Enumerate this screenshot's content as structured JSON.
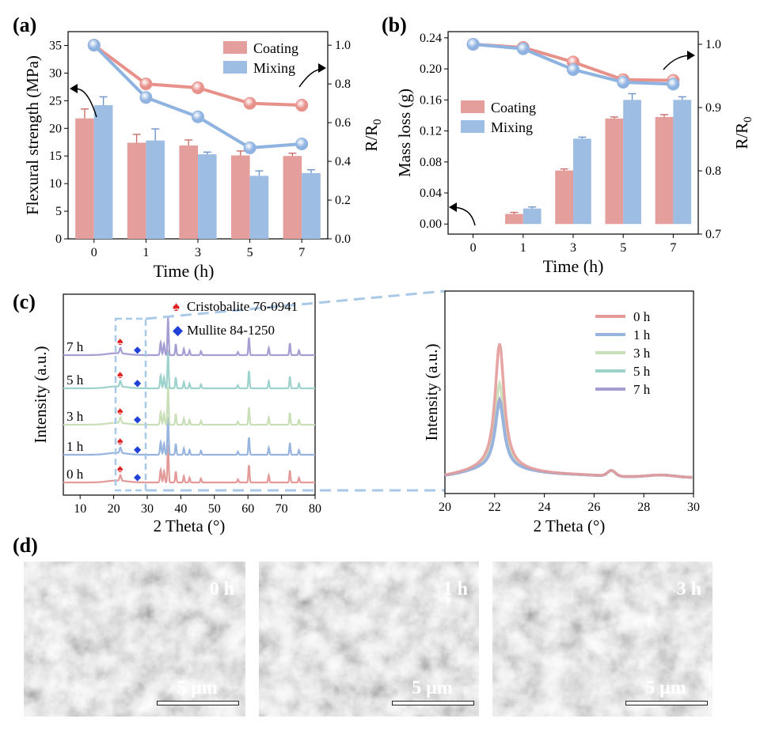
{
  "colors": {
    "coating": "#e49e9b",
    "coating_line": "#e8908a",
    "mixing": "#9dbde3",
    "mixing_line": "#8fb3e0",
    "cristobalite": "#e02020",
    "mullite": "#2040d8",
    "zoom_dash": "#a9c9e8",
    "xrd": [
      "#e39a99",
      "#97b5df",
      "#c9dfb8",
      "#9ed3cd",
      "#a59ed3"
    ]
  },
  "panel_labels": {
    "a": "(a)",
    "b": "(b)",
    "c": "(c)",
    "d": "(d)"
  },
  "chart_data": [
    {
      "id": "a",
      "type": "bar",
      "categories": [
        "0",
        "1",
        "3",
        "5",
        "7"
      ],
      "series": [
        {
          "name": "Coating",
          "values": [
            21.8,
            17.4,
            16.9,
            15.1,
            15.0
          ],
          "errors": [
            1.7,
            1.5,
            1.0,
            0.8,
            0.5
          ]
        },
        {
          "name": "Mixing",
          "values": [
            24.2,
            17.8,
            15.3,
            11.4,
            11.9
          ],
          "errors": [
            1.5,
            2.1,
            0.4,
            0.9,
            0.6
          ]
        }
      ],
      "line_series": [
        {
          "name": "Coating",
          "values": [
            1.0,
            0.8,
            0.78,
            0.7,
            0.69
          ]
        },
        {
          "name": "Mixing",
          "values": [
            1.0,
            0.73,
            0.63,
            0.47,
            0.49
          ]
        }
      ],
      "xlabel": "Time (h)",
      "ylabel": "Flexural strength (MPa)",
      "y2label": "R/R0",
      "ylim": [
        0,
        37.5
      ],
      "y2lim": [
        0,
        1.07
      ],
      "yticks": [
        "0",
        "5",
        "10",
        "15",
        "20",
        "25",
        "30",
        "35"
      ],
      "y2ticks": [
        "0.0",
        "0.2",
        "0.4",
        "0.6",
        "0.8",
        "1.0"
      ],
      "legend": [
        "Coating",
        "Mixing"
      ],
      "legend_position": "top-right"
    },
    {
      "id": "b",
      "type": "bar",
      "categories": [
        "0",
        "1",
        "3",
        "5",
        "7"
      ],
      "series": [
        {
          "name": "Coating",
          "values": [
            0.0,
            0.013,
            0.069,
            0.136,
            0.138
          ],
          "errors": [
            0.0,
            0.002,
            0.002,
            0.002,
            0.003
          ]
        },
        {
          "name": "Mixing",
          "values": [
            0.0,
            0.02,
            0.11,
            0.16,
            0.16
          ],
          "errors": [
            0.0,
            0.002,
            0.002,
            0.008,
            0.004
          ]
        }
      ],
      "line_series": [
        {
          "name": "Coating",
          "values": [
            1.0,
            0.995,
            0.972,
            0.944,
            0.943
          ]
        },
        {
          "name": "Mixing",
          "values": [
            1.0,
            0.993,
            0.96,
            0.94,
            0.937
          ]
        }
      ],
      "xlabel": "Time (h)",
      "ylabel": "Mass loss (g)",
      "y2label": "R/R0",
      "ylim": [
        -0.013,
        0.248
      ],
      "y2lim": [
        0.7,
        1.02
      ],
      "yticks": [
        "0.00",
        "0.04",
        "0.08",
        "0.12",
        "0.16",
        "0.20",
        "0.24"
      ],
      "y2ticks": [
        "0.7",
        "0.8",
        "0.9",
        "1.0"
      ],
      "legend": [
        "Coating",
        "Mixing"
      ],
      "legend_position": "center-left"
    },
    {
      "id": "c-left",
      "type": "line",
      "xlabel": "2 Theta (°)",
      "ylabel": "Intensity (a.u.)",
      "xlim": [
        5,
        80
      ],
      "xticks": [
        "10",
        "20",
        "30",
        "40",
        "50",
        "60",
        "70",
        "80"
      ],
      "traces": [
        "0 h",
        "1 h",
        "3 h",
        "5 h",
        "7 h"
      ],
      "peaks_2theta": [
        22.0,
        26.8,
        34.0,
        36.2,
        38.5,
        42.2,
        46.0,
        60.3,
        66.2,
        72.5,
        75.2
      ],
      "legend": [
        {
          "symbol": "♠",
          "text": "Cristobalite 76-0941"
        },
        {
          "symbol": "◆",
          "text": "Mullite 84-1250"
        }
      ]
    },
    {
      "id": "c-right",
      "type": "line",
      "xlabel": "2 Theta (°)",
      "ylabel": "Intensity (a.u.)",
      "xlim": [
        20,
        30
      ],
      "xticks": [
        "20",
        "22",
        "24",
        "26",
        "28",
        "30"
      ],
      "series": [
        {
          "name": "0 h",
          "peak_height": 1.0
        },
        {
          "name": "1 h",
          "peak_height": 0.52
        },
        {
          "name": "3 h",
          "peak_height": 0.68
        },
        {
          "name": "5 h",
          "peak_height": 0.55
        },
        {
          "name": "7 h",
          "peak_height": 0.55
        }
      ],
      "legend_position": "top-right"
    }
  ],
  "sem": {
    "images": [
      {
        "label": "0 h",
        "scale": "5 μm"
      },
      {
        "label": "1 h",
        "scale": "5 μm"
      },
      {
        "label": "3 h",
        "scale": "5 μm"
      }
    ]
  }
}
